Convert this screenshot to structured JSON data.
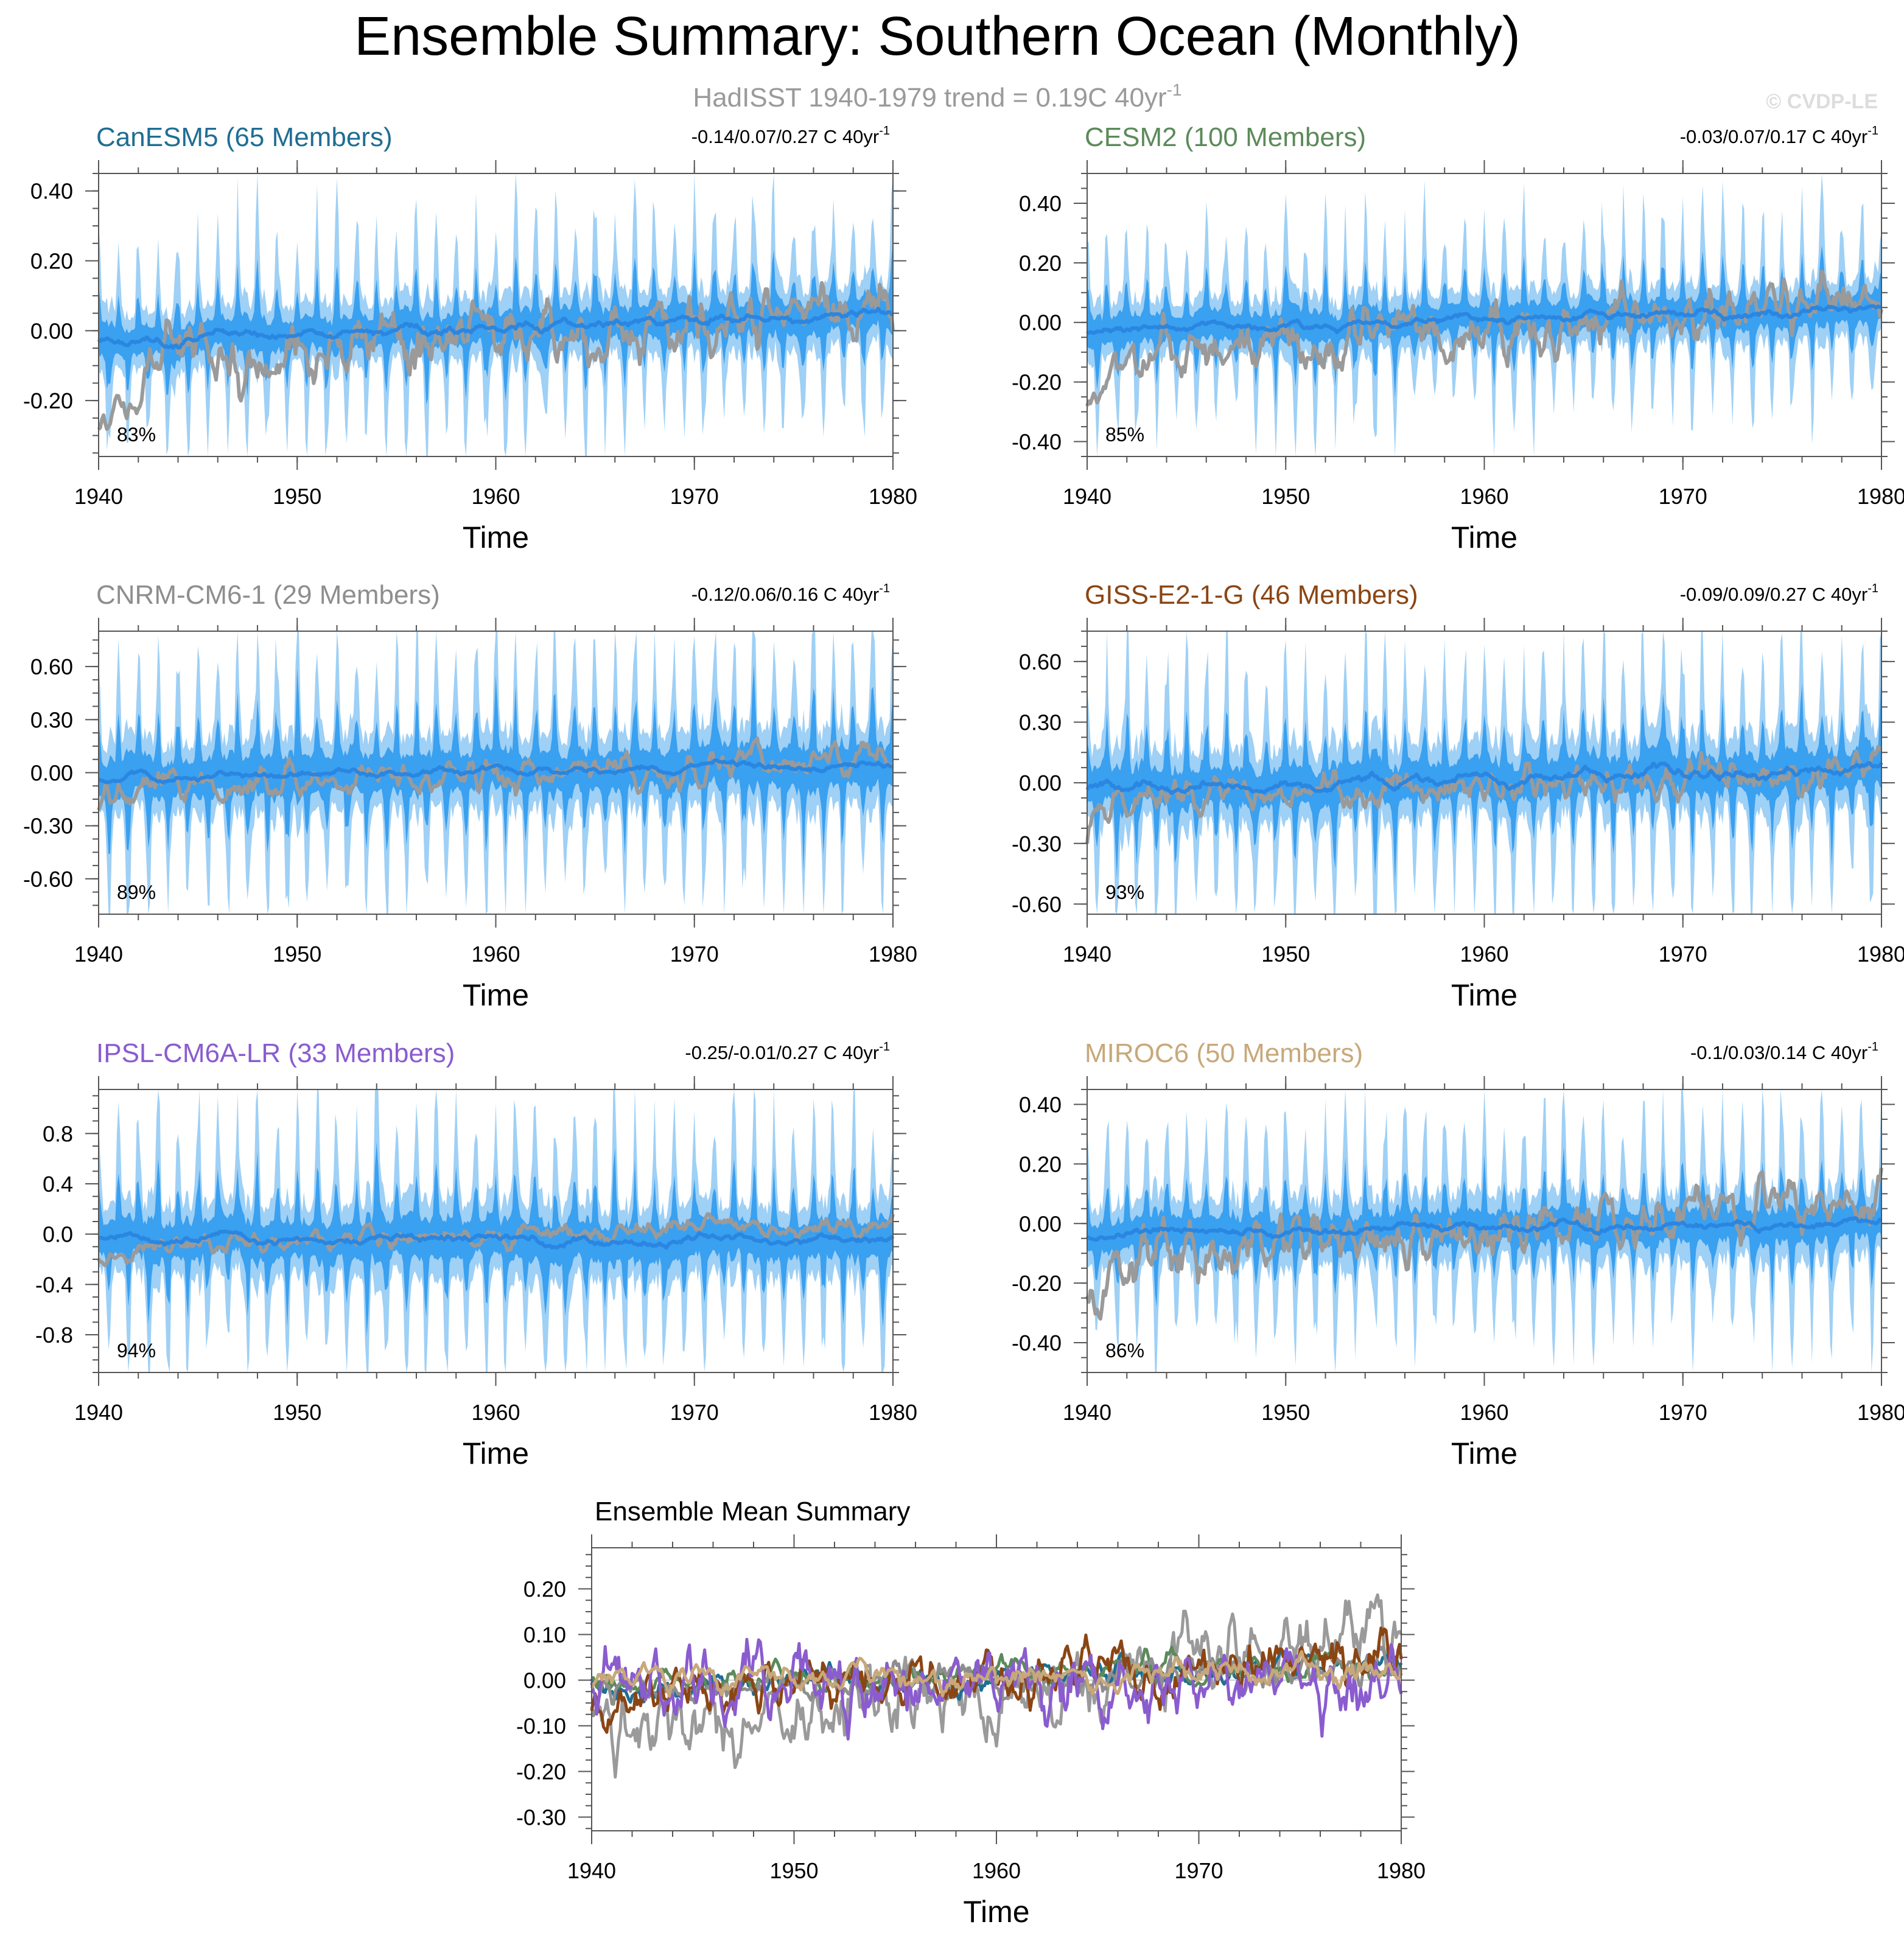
{
  "figure": {
    "title": "Ensemble Summary: Southern Ocean (Monthly)",
    "subtitle": "HadISST 1940-1979 trend = 0.19C 40yr",
    "subtitle_sup": "-1",
    "watermark": "© CVDP-LE",
    "obs_color": "#9a9a9a",
    "band_outer_color": "#9fd0f5",
    "band_inner_color": "#3aa0f0",
    "mean_color": "#2a86e0"
  },
  "chart_data": [
    {
      "type": "line",
      "title": "CanESM5 (65 Members)",
      "title_color": "#1f6e93",
      "trend": "-0.14/0.07/0.27 C 40yr",
      "trend_sup": "-1",
      "pct": "83%",
      "xlabel": "Time",
      "xlim": [
        1940,
        1980
      ],
      "xticks": [
        1940,
        1950,
        1960,
        1970,
        1980
      ],
      "ylim": [
        -0.36,
        0.45
      ],
      "yticks": [
        -0.2,
        0.0,
        0.2,
        0.4
      ],
      "ytick_labels": [
        "-0.20",
        "0.00",
        "0.20",
        "0.40"
      ],
      "amp_inner": 0.12,
      "amp_outer": 0.23,
      "obs_start": -0.25,
      "obs_end": 0.15,
      "obs_noise": 0.06,
      "mean_trend": 0.08,
      "mean_wiggle": 0.02
    },
    {
      "type": "line",
      "title": "CESM2 (100 Members)",
      "title_color": "#5c8a5a",
      "trend": "-0.03/0.07/0.17 C 40yr",
      "trend_sup": "-1",
      "pct": "85%",
      "xlabel": "Time",
      "xlim": [
        1940,
        1980
      ],
      "xticks": [
        1940,
        1950,
        1960,
        1970,
        1980
      ],
      "ylim": [
        -0.45,
        0.5
      ],
      "yticks": [
        -0.4,
        -0.2,
        0.0,
        0.2,
        0.4
      ],
      "ytick_labels": [
        "-0.40",
        "-0.20",
        "0.00",
        "0.20",
        "0.40"
      ],
      "amp_inner": 0.13,
      "amp_outer": 0.24,
      "obs_start": -0.25,
      "obs_end": 0.18,
      "obs_noise": 0.06,
      "mean_trend": 0.08,
      "mean_wiggle": 0.02
    },
    {
      "type": "line",
      "title": "CNRM-CM6-1 (29 Members)",
      "title_color": "#8e8e8e",
      "trend": "-0.12/0.06/0.16 C 40yr",
      "trend_sup": "-1",
      "pct": "89%",
      "xlabel": "Time",
      "xlim": [
        1940,
        1980
      ],
      "xticks": [
        1940,
        1950,
        1960,
        1970,
        1980
      ],
      "ylim": [
        -0.8,
        0.8
      ],
      "yticks": [
        -0.6,
        -0.3,
        0.0,
        0.3,
        0.6
      ],
      "ytick_labels": [
        "-0.60",
        "-0.30",
        "0.00",
        "0.30",
        "0.60"
      ],
      "amp_inner": 0.3,
      "amp_outer": 0.55,
      "obs_start": -0.2,
      "obs_end": 0.18,
      "obs_noise": 0.06,
      "mean_trend": 0.08,
      "mean_wiggle": 0.03
    },
    {
      "type": "line",
      "title": "GISS-E2-1-G (46 Members)",
      "title_color": "#8b4513",
      "trend": "-0.09/0.09/0.27 C 40yr",
      "trend_sup": "-1",
      "pct": "93%",
      "xlabel": "Time",
      "xlim": [
        1940,
        1980
      ],
      "xticks": [
        1940,
        1950,
        1960,
        1970,
        1980
      ],
      "ylim": [
        -0.65,
        0.75
      ],
      "yticks": [
        -0.6,
        -0.3,
        0.0,
        0.3,
        0.6
      ],
      "ytick_labels": [
        "-0.60",
        "-0.30",
        "0.00",
        "0.30",
        "0.60"
      ],
      "amp_inner": 0.25,
      "amp_outer": 0.48,
      "obs_start": -0.2,
      "obs_end": 0.18,
      "obs_noise": 0.06,
      "mean_trend": 0.1,
      "mean_wiggle": 0.04
    },
    {
      "type": "line",
      "title": "IPSL-CM6A-LR (33 Members)",
      "title_color": "#8a5ccf",
      "trend": "-0.25/-0.01/0.27 C 40yr",
      "trend_sup": "-1",
      "pct": "94%",
      "xlabel": "Time",
      "xlim": [
        1940,
        1980
      ],
      "xticks": [
        1940,
        1950,
        1960,
        1970,
        1980
      ],
      "ylim": [
        -1.1,
        1.15
      ],
      "yticks": [
        -0.8,
        -0.4,
        0.0,
        0.4,
        0.8
      ],
      "ytick_labels": [
        "-0.8",
        "-0.4",
        "0.0",
        "0.4",
        "0.8"
      ],
      "amp_inner": 0.4,
      "amp_outer": 0.75,
      "obs_start": -0.2,
      "obs_end": 0.2,
      "obs_noise": 0.05,
      "mean_trend": -0.02,
      "mean_wiggle": 0.05
    },
    {
      "type": "line",
      "title": "MIROC6 (50 Members)",
      "title_color": "#c8a87a",
      "trend": "-0.1/0.03/0.14 C 40yr",
      "trend_sup": "-1",
      "pct": "86%",
      "xlabel": "Time",
      "xlim": [
        1940,
        1980
      ],
      "xticks": [
        1940,
        1950,
        1960,
        1970,
        1980
      ],
      "ylim": [
        -0.5,
        0.45
      ],
      "yticks": [
        -0.4,
        -0.2,
        0.0,
        0.2,
        0.4
      ],
      "ytick_labels": [
        "-0.40",
        "-0.20",
        "0.00",
        "0.20",
        "0.40"
      ],
      "amp_inner": 0.14,
      "amp_outer": 0.28,
      "obs_start": -0.25,
      "obs_end": 0.2,
      "obs_noise": 0.06,
      "mean_trend": 0.03,
      "mean_wiggle": 0.02
    },
    {
      "type": "line",
      "title": "Ensemble Mean Summary",
      "title_color": "#000000",
      "xlabel": "Time",
      "xlim": [
        1940,
        1980
      ],
      "xticks": [
        1940,
        1950,
        1960,
        1970,
        1980
      ],
      "ylim": [
        -0.33,
        0.29
      ],
      "yticks": [
        -0.3,
        -0.2,
        -0.1,
        0.0,
        0.1,
        0.2
      ],
      "ytick_labels": [
        "-0.30",
        "-0.20",
        "-0.10",
        "0.00",
        "0.10",
        "0.20"
      ],
      "series": [
        {
          "name": "HadISST",
          "color": "#9a9a9a",
          "start": -0.22,
          "end": 0.18,
          "noise": 0.055
        },
        {
          "name": "CanESM5",
          "color": "#1f6e93",
          "start": -0.03,
          "end": 0.05,
          "noise": 0.018
        },
        {
          "name": "CESM2",
          "color": "#5c8a5a",
          "start": -0.02,
          "end": 0.06,
          "noise": 0.018
        },
        {
          "name": "CNRM-CM6-1",
          "color": "#8e8e8e",
          "start": -0.05,
          "end": 0.05,
          "noise": 0.025
        },
        {
          "name": "GISS-E2-1-G",
          "color": "#8b4513",
          "start": -0.06,
          "end": 0.08,
          "noise": 0.04
        },
        {
          "name": "IPSL-CM6A-LR",
          "color": "#8a5ccf",
          "start": 0.0,
          "end": -0.02,
          "noise": 0.05
        },
        {
          "name": "MIROC6",
          "color": "#c8a87a",
          "start": 0.01,
          "end": 0.03,
          "noise": 0.02
        }
      ]
    }
  ]
}
